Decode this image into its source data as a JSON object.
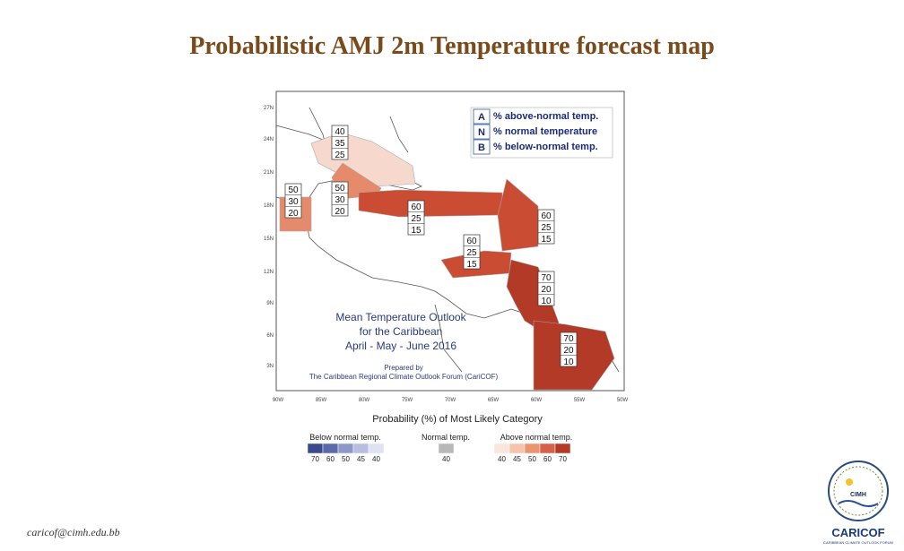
{
  "page": {
    "title": "Probabilistic AMJ 2m Temperature forecast map",
    "email": "caricof@cimh.edu.bb"
  },
  "legend_box": {
    "rows": [
      {
        "code": "A",
        "text": "% above-normal temp."
      },
      {
        "code": "N",
        "text": "% normal temperature"
      },
      {
        "code": "B",
        "text": "% below-normal temp."
      }
    ]
  },
  "map_text": {
    "line1": "Mean Temperature Outlook",
    "line2": "for the Caribbean",
    "line3": "April - May - June 2016",
    "prepared1": "Prepared by",
    "prepared2": "The Caribbean Regional Climate Outlook Forum (CariCOF)"
  },
  "axes": {
    "lat_labels": [
      "27N",
      "24N",
      "21N",
      "18N",
      "15N",
      "12N",
      "9N",
      "6N",
      "3N"
    ],
    "lon_labels": [
      "90W",
      "85W",
      "80W",
      "75W",
      "70W",
      "65W",
      "60W",
      "55W",
      "50W"
    ]
  },
  "regions": [
    {
      "name": "bahamas",
      "a": "40",
      "n": "35",
      "b": "25",
      "color": "#f6d9cc"
    },
    {
      "name": "cuba-west",
      "a": "50",
      "n": "30",
      "b": "20",
      "color": "#e58a6a"
    },
    {
      "name": "belize",
      "a": "50",
      "n": "30",
      "b": "20",
      "color": "#e58a6a"
    },
    {
      "name": "greater-antilles",
      "a": "60",
      "n": "25",
      "b": "15",
      "color": "#c94c33"
    },
    {
      "name": "lesser-antilles-north",
      "a": "60",
      "n": "25",
      "b": "15",
      "color": "#c94c33"
    },
    {
      "name": "abc-islands",
      "a": "60",
      "n": "25",
      "b": "15",
      "color": "#c94c33"
    },
    {
      "name": "trinidad-guyana",
      "a": "70",
      "n": "20",
      "b": "10",
      "color": "#b23a26"
    },
    {
      "name": "suriname-guiana",
      "a": "70",
      "n": "20",
      "b": "10",
      "color": "#b23a26"
    }
  ],
  "color_legend": {
    "title": "Probability (%) of Most Likely Category",
    "below_label": "Below normal temp.",
    "normal_label": "Normal temp.",
    "above_label": "Above normal temp.",
    "below_values": [
      "70",
      "60",
      "50",
      "45",
      "40"
    ],
    "normal_values": [
      "40"
    ],
    "above_values": [
      "40",
      "45",
      "50",
      "60",
      "70"
    ],
    "below_colors": [
      "#3b4a8a",
      "#5c6aab",
      "#8d98c8",
      "#b7bedf",
      "#dfe3f1"
    ],
    "normal_colors": [
      "#b8b8b8"
    ],
    "above_colors": [
      "#fbe6dc",
      "#f6c4ac",
      "#ea9572",
      "#d4624a",
      "#b23a26"
    ]
  },
  "logo": {
    "top_text": "CIMH",
    "brand": "CARICOF",
    "sub": "CARIBBEAN CLIMATE OUTLOOK FORUM"
  }
}
